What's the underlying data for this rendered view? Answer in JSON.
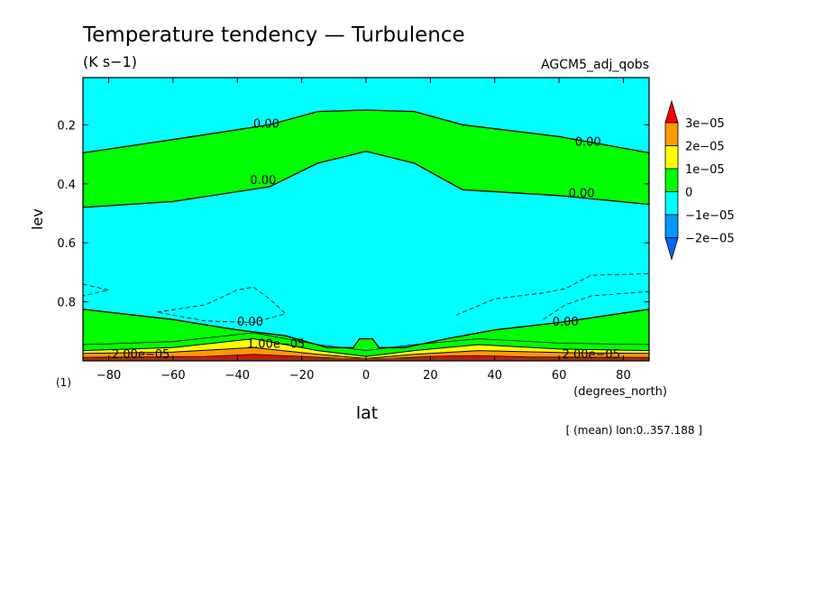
{
  "chart_data": {
    "type": "contour",
    "title": "Temperature tendency — Turbulence",
    "units": "(K s−1)",
    "run_name": "AGCM5_adj_qobs",
    "xlabel": "lat",
    "x_units": "(degrees_north)",
    "ylabel": "lev",
    "y_units": "(1)",
    "averaging_note": "[ (mean) lon:0..357.188 ]",
    "xlim": [
      -88,
      88
    ],
    "ylim": [
      0.04,
      1.0
    ],
    "y_inverted": true,
    "x_ticks": [
      -80,
      -60,
      -40,
      -20,
      0,
      20,
      40,
      60,
      80
    ],
    "y_ticks": [
      0.2,
      0.4,
      0.6,
      0.8
    ],
    "x_tick_labels": [
      "−80",
      "−60",
      "−40",
      "−20",
      "0",
      "20",
      "40",
      "60",
      "80"
    ],
    "y_tick_labels": [
      "0.2",
      "0.4",
      "0.6",
      "0.8"
    ],
    "colorbar": {
      "labels": [
        "3e−05",
        "2e−05",
        "1e−05",
        "0",
        "−1e−05",
        "−2e−05"
      ],
      "colors": [
        "#ff0000",
        "#ff9900",
        "#ffff00",
        "#00ff00",
        "#00ffff",
        "#0099ff",
        "#0066ff"
      ]
    },
    "fill_colors": {
      "negative": "#00ffff",
      "zero_to_1e-05": "#00ff00",
      "1e-05_to_2e-05": "#ffff00",
      "2e-05_to_3e-05": "#ff9900",
      "above_3e-05": "#ff0000",
      "near_surface_dark": "#8b3a1a"
    },
    "regions": {
      "upper_zero_band": {
        "top": {
          "lat": [
            -88,
            -60,
            -30,
            -15,
            0,
            15,
            30,
            60,
            88
          ],
          "lev": [
            0.295,
            0.25,
            0.2,
            0.155,
            0.15,
            0.155,
            0.2,
            0.24,
            0.295
          ]
        },
        "bottom": {
          "lat": [
            -88,
            -60,
            -30,
            -15,
            0,
            15,
            30,
            60,
            88
          ],
          "lev": [
            0.48,
            0.46,
            0.41,
            0.33,
            0.29,
            0.33,
            0.42,
            0.44,
            0.47
          ]
        }
      },
      "lower_zero_layer_top": {
        "lat": [
          -88,
          -60,
          -40,
          -25,
          -12,
          -4,
          -2,
          2,
          4,
          12,
          25,
          40,
          60,
          88
        ],
        "lev": [
          0.825,
          0.86,
          0.895,
          0.915,
          0.955,
          0.955,
          0.925,
          0.925,
          0.955,
          0.955,
          0.925,
          0.895,
          0.87,
          0.825
        ]
      },
      "yellow_layer_top": {
        "lat": [
          -88,
          -60,
          -35,
          -15,
          0,
          15,
          35,
          60,
          88
        ],
        "lev": [
          0.965,
          0.955,
          0.925,
          0.965,
          0.985,
          0.965,
          0.945,
          0.96,
          0.965
        ]
      },
      "orange_layer_top": {
        "lat": [
          -88,
          -60,
          -35,
          -15,
          0,
          15,
          35,
          60,
          88
        ],
        "lev": [
          0.975,
          0.97,
          0.955,
          0.978,
          0.992,
          0.978,
          0.965,
          0.972,
          0.975
        ]
      },
      "red_layer_top": {
        "lat": [
          -88,
          -50,
          -35,
          -20,
          0,
          20,
          35,
          50,
          88
        ],
        "lev": [
          0.988,
          0.985,
          0.978,
          0.985,
          0.996,
          0.985,
          0.982,
          0.987,
          0.988
        ]
      }
    },
    "dashed_contours": [
      {
        "lat": [
          -88,
          -80,
          -88
        ],
        "lev": [
          0.74,
          0.76,
          0.78
        ]
      },
      {
        "lat": [
          -65,
          -50,
          -40,
          -35,
          -30,
          -25,
          -35,
          -50,
          -65
        ],
        "lev": [
          0.835,
          0.81,
          0.76,
          0.75,
          0.79,
          0.84,
          0.87,
          0.865,
          0.835
        ]
      },
      {
        "lat": [
          28,
          40,
          55,
          62,
          70,
          88
        ],
        "lev": [
          0.845,
          0.79,
          0.77,
          0.755,
          0.71,
          0.705
        ]
      },
      {
        "lat": [
          55,
          62,
          70,
          88
        ],
        "lev": [
          0.86,
          0.81,
          0.78,
          0.765
        ]
      }
    ],
    "contour_labels": [
      {
        "text": "0.00",
        "lat": -31,
        "lev": 0.195
      },
      {
        "text": "0.00",
        "lat": 69,
        "lev": 0.255
      },
      {
        "text": "0.00",
        "lat": -32,
        "lev": 0.385
      },
      {
        "text": "0.00",
        "lat": 67,
        "lev": 0.43
      },
      {
        "text": "0.00",
        "lat": -36,
        "lev": 0.865
      },
      {
        "text": "0.00",
        "lat": 62,
        "lev": 0.865
      },
      {
        "text": "1.00e−05",
        "lat": -28,
        "lev": 0.94
      },
      {
        "text": "2.00e−05",
        "lat": -70,
        "lev": 0.975
      },
      {
        "text": "2.00e−05",
        "lat": 70,
        "lev": 0.975
      }
    ]
  }
}
